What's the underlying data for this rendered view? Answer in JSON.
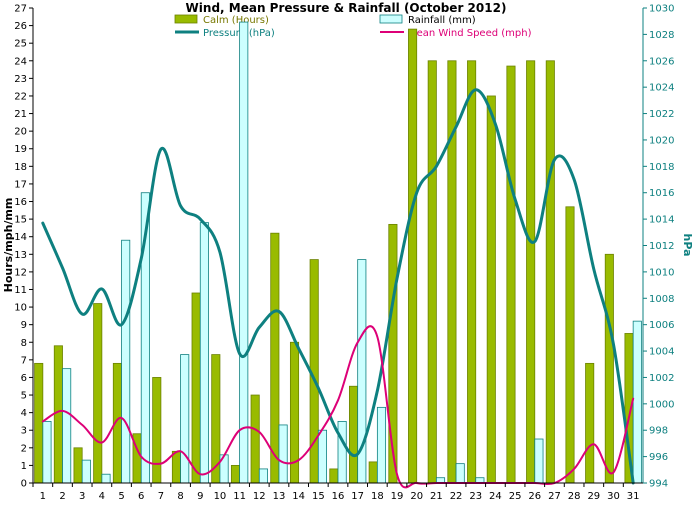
{
  "chart_data": {
    "type": "bar",
    "title": "Wind, Mean Pressure & Rainfall (October 2012)",
    "ylabel": "Hours/mph/mm",
    "ylabel_right": "hPa",
    "ylim": [
      0,
      27
    ],
    "ylim_right": [
      994,
      1030
    ],
    "grid": false,
    "legend_position": "top",
    "categories": [
      "1",
      "2",
      "3",
      "4",
      "5",
      "6",
      "7",
      "8",
      "9",
      "10",
      "11",
      "12",
      "13",
      "14",
      "15",
      "16",
      "17",
      "18",
      "19",
      "20",
      "21",
      "22",
      "23",
      "24",
      "25",
      "26",
      "27",
      "28",
      "29",
      "30",
      "31"
    ],
    "series": [
      {
        "name": "Calm (Hours)",
        "kind": "bar",
        "axis": "left",
        "color": "#99bb00",
        "values": [
          6.8,
          7.8,
          2.0,
          10.2,
          6.8,
          2.8,
          6.0,
          1.8,
          10.8,
          7.3,
          1.0,
          5.0,
          14.2,
          8.0,
          12.7,
          0.8,
          5.5,
          1.2,
          14.7,
          25.8,
          24.0,
          24.0,
          24.0,
          22.0,
          23.7,
          24.0,
          24.0,
          15.7,
          6.8,
          13.0,
          8.5
        ]
      },
      {
        "name": "Rainfall (mm)",
        "kind": "bar",
        "axis": "left",
        "color": "#ccffff",
        "values": [
          3.5,
          6.5,
          1.3,
          0.5,
          13.8,
          16.5,
          0.0,
          7.3,
          14.8,
          1.6,
          26.2,
          0.8,
          3.3,
          0.0,
          3.0,
          3.5,
          12.7,
          4.3,
          0.0,
          0.0,
          0.3,
          1.1,
          0.3,
          0.0,
          0.0,
          2.5,
          0.0,
          0.0,
          0.0,
          0.0,
          9.2
        ]
      },
      {
        "name": "Pressure (hPa)",
        "kind": "line",
        "axis": "right",
        "color": "#0e8080",
        "values": [
          1013.7,
          1010.3,
          1006.8,
          1008.7,
          1006.0,
          1011.0,
          1019.3,
          1015.0,
          1014.0,
          1011.5,
          1003.8,
          1005.8,
          1007.0,
          1004.2,
          1001.2,
          997.8,
          996.2,
          1001.0,
          1009.5,
          1016.0,
          1018.0,
          1021.0,
          1023.8,
          1021.2,
          1015.5,
          1012.3,
          1018.5,
          1017.0,
          1010.2,
          1004.5,
          994.0
        ]
      },
      {
        "name": "Mean Wind Speed (mph)",
        "kind": "line",
        "axis": "left",
        "color": "#dd0077",
        "values": [
          3.5,
          4.1,
          3.3,
          2.3,
          3.7,
          1.5,
          1.1,
          1.8,
          0.5,
          1.2,
          3.0,
          2.9,
          1.3,
          1.3,
          2.7,
          4.7,
          8.0,
          8.3,
          0.5,
          0.0,
          0.0,
          0.0,
          0.0,
          0.0,
          0.0,
          0.0,
          0.0,
          0.8,
          2.2,
          0.6,
          4.8
        ]
      }
    ],
    "left_ticks": [
      "0",
      "1",
      "2",
      "3",
      "4",
      "5",
      "6",
      "7",
      "8",
      "9",
      "10",
      "11",
      "12",
      "13",
      "14",
      "15",
      "16",
      "17",
      "18",
      "19",
      "20",
      "21",
      "22",
      "23",
      "24",
      "25",
      "26",
      "27"
    ],
    "right_ticks": [
      "994",
      "996",
      "998",
      "1000",
      "1002",
      "1004",
      "1006",
      "1008",
      "1010",
      "1012",
      "1014",
      "1016",
      "1018",
      "1020",
      "1022",
      "1024",
      "1026",
      "1028",
      "1030"
    ]
  }
}
